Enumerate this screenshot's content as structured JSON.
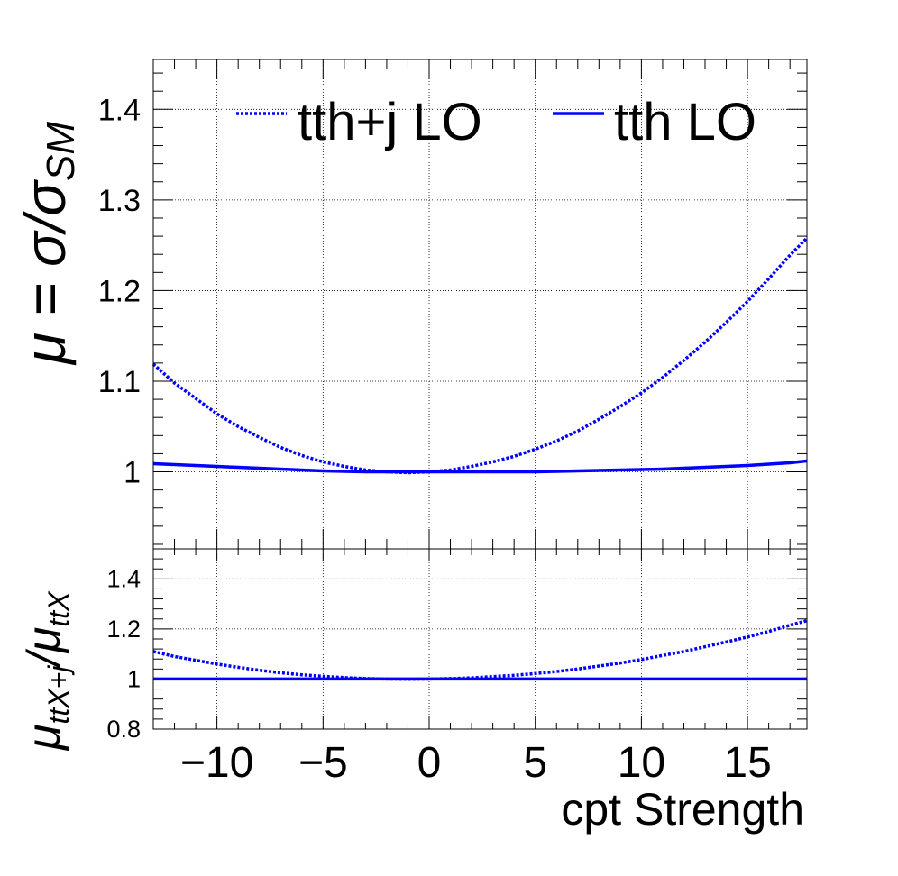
{
  "chart_data": [
    {
      "panel": "upper",
      "type": "line",
      "ylabel": "μ = σ/σ",
      "ylabel_subscript": "SM",
      "xlim": [
        -13,
        17.8
      ],
      "ylim": [
        0.915,
        1.455
      ],
      "yticks": [
        1,
        1.1,
        1.2,
        1.3,
        1.4
      ],
      "ytick_labels": [
        "1",
        "1.1",
        "1.2",
        "1.3",
        "1.4"
      ],
      "grid": true,
      "legend_position": "top",
      "series": [
        {
          "name": "tth+j LO",
          "style": "dotted",
          "color": "#0000ff",
          "x": [
            -13,
            -12,
            -11,
            -10,
            -9,
            -8,
            -7,
            -6,
            -5,
            -4,
            -3,
            -2,
            -1,
            0,
            1,
            2,
            3,
            4,
            5,
            6,
            7,
            8,
            9,
            10,
            11,
            12,
            13,
            14,
            15,
            16,
            17,
            17.8
          ],
          "y": [
            1.119,
            1.098,
            1.081,
            1.064,
            1.05,
            1.038,
            1.027,
            1.018,
            1.011,
            1.006,
            1.002,
            1.0,
            0.999,
            1.0,
            1.002,
            1.006,
            1.011,
            1.017,
            1.025,
            1.034,
            1.045,
            1.058,
            1.072,
            1.087,
            1.104,
            1.123,
            1.143,
            1.165,
            1.188,
            1.213,
            1.239,
            1.258
          ]
        },
        {
          "name": "tth LO",
          "style": "solid",
          "color": "#0000ff",
          "x": [
            -13,
            -11,
            -9,
            -7,
            -5,
            -3,
            -1,
            0,
            1,
            3,
            5,
            7,
            9,
            11,
            13,
            15,
            17,
            17.8
          ],
          "y": [
            1.009,
            1.007,
            1.005,
            1.003,
            1.001,
            1.0,
            1.0,
            1.0,
            1.0,
            1.0,
            1.0,
            1.001,
            1.002,
            1.003,
            1.005,
            1.007,
            1.01,
            1.012
          ]
        }
      ]
    },
    {
      "panel": "lower",
      "type": "line",
      "ylabel": "μ",
      "ylabel_sub1": "ttX+j",
      "ylabel_mid": "/μ",
      "ylabel_sub2": "ttX",
      "xlabel": "cpt Strength",
      "xlim": [
        -13,
        17.8
      ],
      "ylim": [
        0.8,
        1.52
      ],
      "xticks": [
        -10,
        -5,
        0,
        5,
        10,
        15
      ],
      "xtick_labels": [
        "−10",
        "−5",
        "0",
        "5",
        "10",
        "15"
      ],
      "yticks": [
        0.8,
        1,
        1.2,
        1.4
      ],
      "ytick_labels": [
        "0.8",
        "1",
        "1.2",
        "1.4"
      ],
      "grid": true,
      "series": [
        {
          "name": "tth+j LO",
          "style": "dotted",
          "color": "#0000ff",
          "x": [
            -13,
            -12,
            -11,
            -10,
            -9,
            -8,
            -7,
            -6,
            -5,
            -4,
            -3,
            -2,
            -1,
            0,
            1,
            2,
            3,
            4,
            5,
            6,
            7,
            8,
            9,
            10,
            11,
            12,
            13,
            14,
            15,
            16,
            17,
            17.8
          ],
          "y": [
            1.11,
            1.09,
            1.075,
            1.06,
            1.047,
            1.035,
            1.025,
            1.017,
            1.011,
            1.006,
            1.002,
            1.0,
            0.999,
            1.0,
            1.002,
            1.005,
            1.01,
            1.015,
            1.022,
            1.03,
            1.04,
            1.052,
            1.064,
            1.078,
            1.094,
            1.11,
            1.129,
            1.148,
            1.168,
            1.19,
            1.215,
            1.233
          ]
        },
        {
          "name": "tth LO",
          "style": "solid",
          "color": "#0000ff",
          "x": [
            -13,
            17.8
          ],
          "y": [
            1.0,
            1.0
          ]
        }
      ]
    }
  ]
}
